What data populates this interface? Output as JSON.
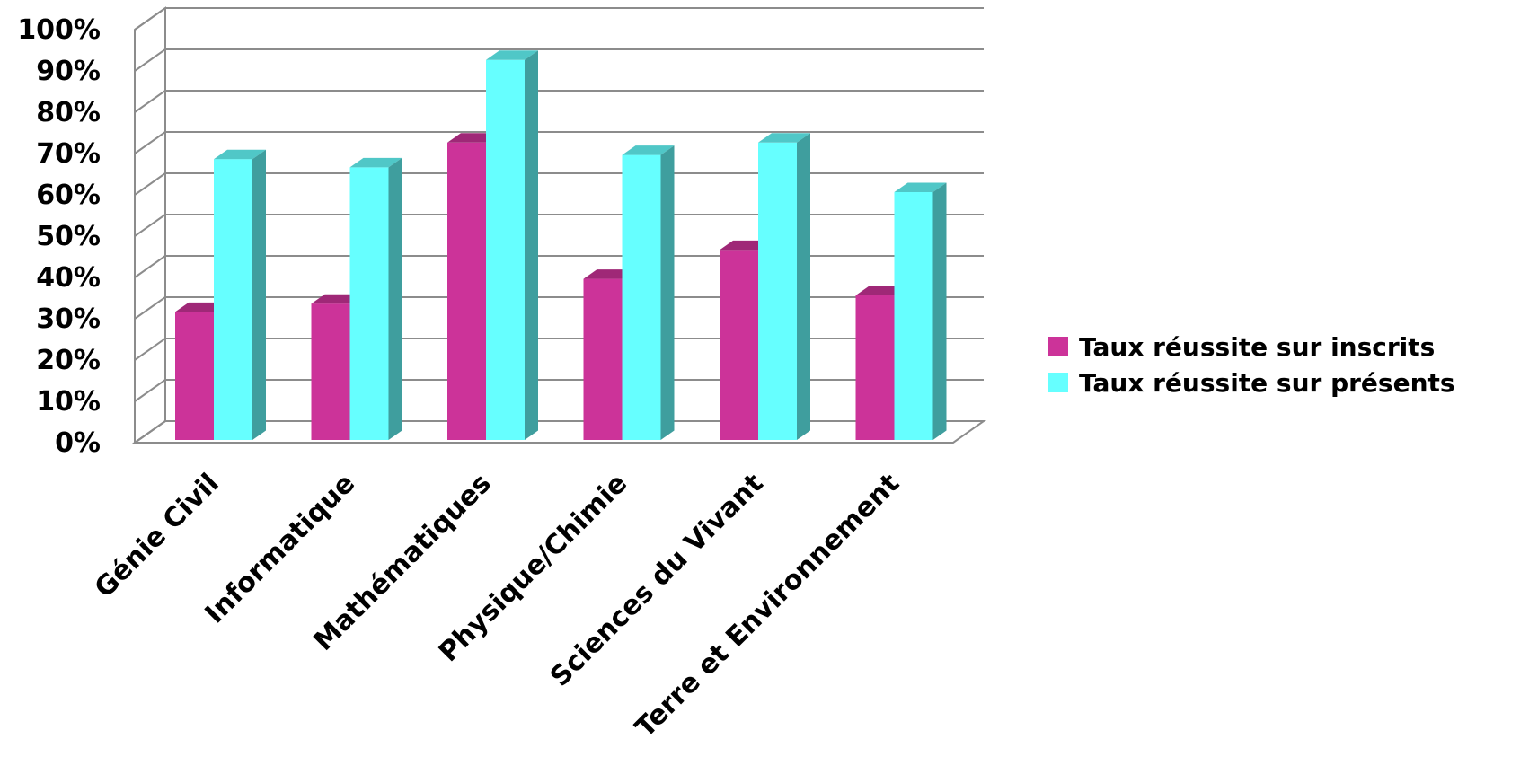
{
  "chart_data": {
    "type": "bar",
    "title": "",
    "xlabel": "",
    "ylabel": "",
    "ylim": [
      0,
      1
    ],
    "y_ticks": [
      "0%",
      "10%",
      "20%",
      "30%",
      "40%",
      "50%",
      "60%",
      "70%",
      "80%",
      "90%",
      "100%"
    ],
    "categories": [
      "Génie Civil",
      "Informatique",
      "Mathématiques",
      "Physique/Chimie",
      "Sciences du Vivant",
      "Terre et Environnement"
    ],
    "series": [
      {
        "name": "Taux réussite sur inscrits",
        "values": [
          0.31,
          0.33,
          0.72,
          0.39,
          0.46,
          0.35
        ],
        "color": "#cc3399"
      },
      {
        "name": "Taux réussite sur présents",
        "values": [
          0.68,
          0.66,
          0.92,
          0.69,
          0.72,
          0.6
        ],
        "color": "#66ffff"
      }
    ],
    "grid": true,
    "legend_position": "right",
    "style": "3d-clustered-columns"
  }
}
